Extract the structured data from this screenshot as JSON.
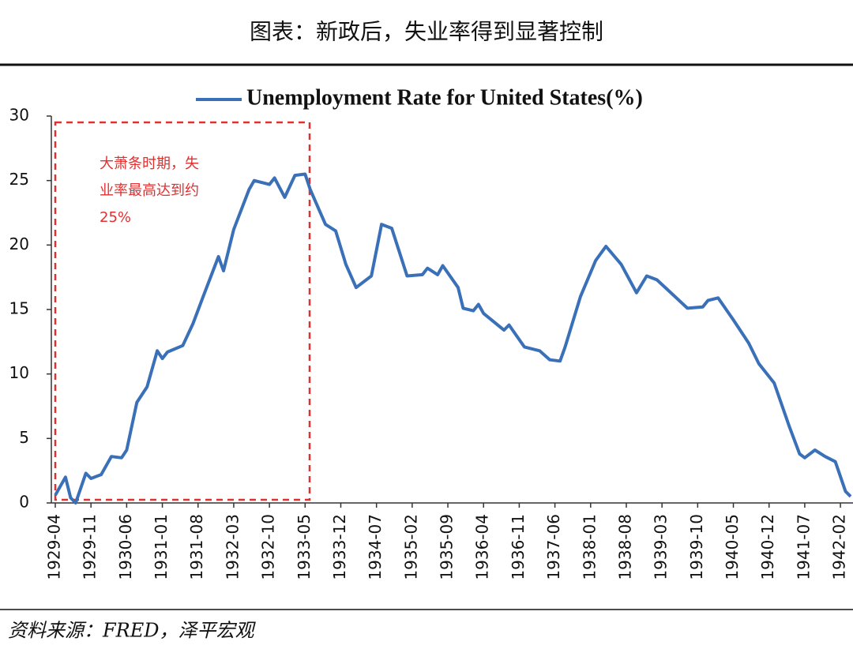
{
  "chart_data": {
    "type": "line",
    "header": "图表：新政后，失业率得到显著控制",
    "source": "资料来源：FRED，泽平宏观",
    "annotation": [
      "大萧条时期，失",
      "业率最高达到约",
      "25%"
    ],
    "legend": "top",
    "x": [
      "1929-04",
      "1929-06",
      "1929-07",
      "1929-08",
      "1929-10",
      "1929-11",
      "1930-01",
      "1930-03",
      "1930-05",
      "1930-06",
      "1930-08",
      "1930-10",
      "1930-12",
      "1931-01",
      "1931-02",
      "1931-05",
      "1931-07",
      "1931-09",
      "1931-12",
      "1932-01",
      "1932-03",
      "1932-06",
      "1932-07",
      "1932-10",
      "1932-11",
      "1933-01",
      "1933-03",
      "1933-05",
      "1933-06",
      "1933-09",
      "1933-11",
      "1934-01",
      "1934-03",
      "1934-06",
      "1934-08",
      "1934-10",
      "1935-01",
      "1935-04",
      "1935-05",
      "1935-07",
      "1935-08",
      "1935-11",
      "1935-12",
      "1936-02",
      "1936-03",
      "1936-04",
      "1936-08",
      "1936-09",
      "1936-12",
      "1937-03",
      "1937-05",
      "1937-07",
      "1937-08",
      "1937-11",
      "1938-02",
      "1938-04",
      "1938-07",
      "1938-10",
      "1938-12",
      "1939-02",
      "1939-05",
      "1939-08",
      "1939-11",
      "1939-12",
      "1940-02",
      "1940-05",
      "1940-08",
      "1940-10",
      "1941-01",
      "1941-04",
      "1941-06",
      "1941-07",
      "1941-09",
      "1941-11",
      "1942-01",
      "1942-03",
      "1942-04"
    ],
    "series": [
      {
        "name": "Unemployment Rate for United States(%)",
        "color": "#3a70b8",
        "values": [
          0.6,
          2.0,
          0.4,
          0,
          2.3,
          1.9,
          2.2,
          3.6,
          3.5,
          4.1,
          7.8,
          9.0,
          11.8,
          11.2,
          11.7,
          12.2,
          13.9,
          16.0,
          19.1,
          18.0,
          21.2,
          24.3,
          25.0,
          24.7,
          25.2,
          23.7,
          25.4,
          25.5,
          24.3,
          21.6,
          21.1,
          18.5,
          16.7,
          17.6,
          21.6,
          21.3,
          17.6,
          17.7,
          18.2,
          17.7,
          18.4,
          16.7,
          15.1,
          14.9,
          15.4,
          14.7,
          13.4,
          13.8,
          12.1,
          11.8,
          11.1,
          11.0,
          12.1,
          16.0,
          18.8,
          19.9,
          18.5,
          16.3,
          17.6,
          17.3,
          16.2,
          15.1,
          15.2,
          15.7,
          15.9,
          14.2,
          12.4,
          10.8,
          9.3,
          5.9,
          3.8,
          3.5,
          4.1,
          3.6,
          3.2,
          0.9,
          0.5
        ]
      }
    ],
    "xlim": [
      "1929-04",
      "1942-04"
    ],
    "xticks": [
      "1929-04",
      "1929-11",
      "1930-06",
      "1931-01",
      "1931-08",
      "1932-03",
      "1932-10",
      "1933-05",
      "1933-12",
      "1934-07",
      "1935-02",
      "1935-09",
      "1936-04",
      "1936-11",
      "1937-06",
      "1938-01",
      "1938-08",
      "1939-03",
      "1939-10",
      "1940-05",
      "1940-12",
      "1941-07",
      "1942-02"
    ],
    "ylim": [
      0,
      30
    ],
    "yticks": [
      0,
      5,
      10,
      15,
      20,
      25,
      30
    ]
  }
}
